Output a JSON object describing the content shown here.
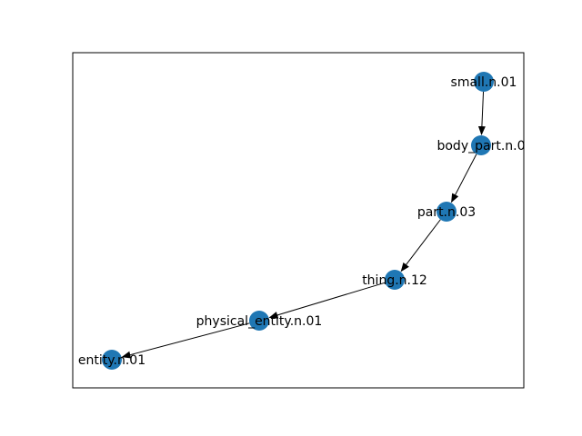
{
  "graph": {
    "node_color": "#1f77b4",
    "edge_color": "#000000",
    "frame_color": "#000000",
    "nodes": [
      {
        "id": "small",
        "label": "small.n.01"
      },
      {
        "id": "body_part",
        "label": "body_part.n.0"
      },
      {
        "id": "part",
        "label": "part.n.03"
      },
      {
        "id": "thing",
        "label": "thing.n.12"
      },
      {
        "id": "physical_entity",
        "label": "physical_entity.n.01"
      },
      {
        "id": "entity",
        "label": "entity.n.01"
      }
    ],
    "edges": [
      {
        "from": "small",
        "to": "body_part"
      },
      {
        "from": "body_part",
        "to": "part"
      },
      {
        "from": "part",
        "to": "thing"
      },
      {
        "from": "thing",
        "to": "physical_entity"
      },
      {
        "from": "physical_entity",
        "to": "entity"
      }
    ]
  }
}
